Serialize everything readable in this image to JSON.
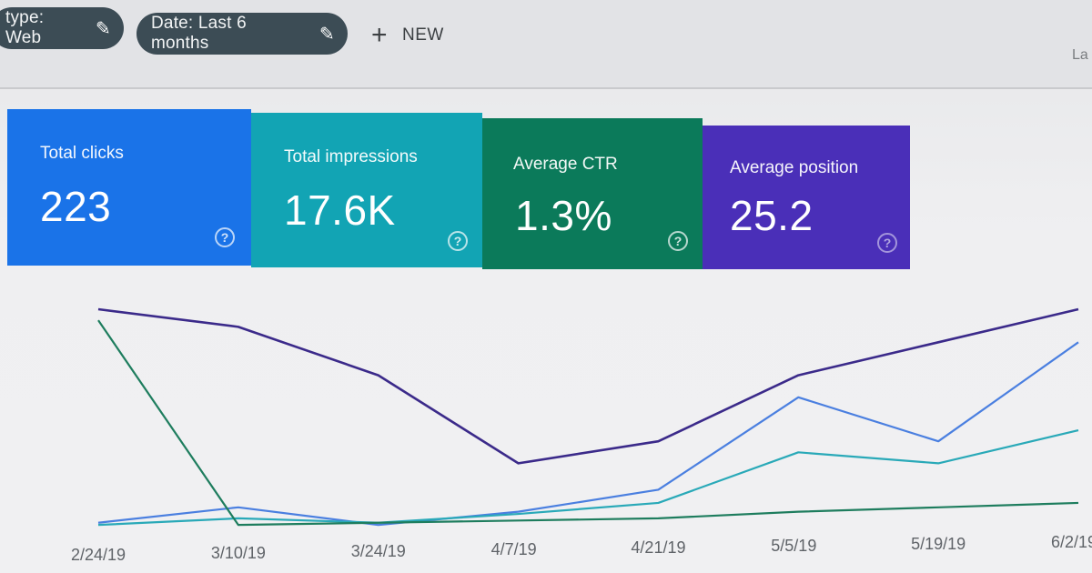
{
  "filters": {
    "search_type": "type: Web",
    "date_range": "Date: Last 6 months",
    "new_label": "NEW",
    "corner_text": "La"
  },
  "metrics": [
    {
      "label": "Total clicks",
      "value": "223",
      "color": "#1a73e8"
    },
    {
      "label": "Total impressions",
      "value": "17.6K",
      "color": "#12a4b4"
    },
    {
      "label": "Average CTR",
      "value": "1.3%",
      "color": "#0b7a5a"
    },
    {
      "label": "Average position",
      "value": "25.2",
      "color": "#4a2fb8"
    }
  ],
  "icons": {
    "edit": "pencil-icon",
    "add": "plus-icon",
    "help": "help-circle-icon"
  },
  "chart_data": {
    "type": "line",
    "x": [
      "2/24/19",
      "3/10/19",
      "3/24/19",
      "4/7/19",
      "4/21/19",
      "5/5/19",
      "5/19/19",
      "6/2/19"
    ],
    "series": [
      {
        "color": "#3b2a8a",
        "values": [
          100,
          92,
          70,
          30,
          40,
          70,
          85,
          100
        ]
      },
      {
        "color": "#4a7fe0",
        "values": [
          3,
          10,
          2,
          8,
          18,
          60,
          40,
          85
        ]
      },
      {
        "color": "#29a9b8",
        "values": [
          2,
          5,
          3,
          7,
          12,
          35,
          30,
          45
        ]
      },
      {
        "color": "#1e7d5e",
        "values": [
          95,
          2,
          3,
          4,
          5,
          8,
          10,
          12
        ]
      }
    ],
    "grid": false
  }
}
